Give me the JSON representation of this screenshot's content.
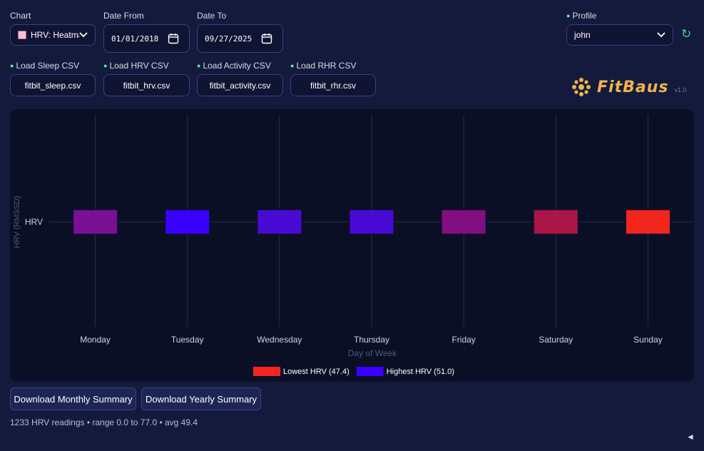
{
  "controls": {
    "chart_label": "Chart",
    "chart_value": "HRV: Heatma",
    "date_from_label": "Date From",
    "date_from_value": "01/01/2018",
    "date_to_label": "Date To",
    "date_to_value": "09/27/2025",
    "profile_label": "Profile",
    "profile_value": "john"
  },
  "loaders": [
    {
      "label": "Load Sleep CSV",
      "file": "fitbit_sleep.csv"
    },
    {
      "label": "Load HRV CSV",
      "file": "fitbit_hrv.csv"
    },
    {
      "label": "Load Activity CSV",
      "file": "fitbit_activity.csv"
    },
    {
      "label": "Load RHR CSV",
      "file": "fitbit_rhr.csv"
    }
  ],
  "brand": {
    "name": "FitBaus",
    "version": "v1.0",
    "color": "#f0b44a"
  },
  "chart_data": {
    "type": "heatmap",
    "x": [
      "Monday",
      "Tuesday",
      "Wednesday",
      "Thursday",
      "Friday",
      "Saturday",
      "Sunday"
    ],
    "y": [
      "HRV"
    ],
    "values": [
      [
        48.9,
        51.0,
        50.5,
        50.5,
        48.7,
        48.0,
        47.4
      ]
    ],
    "colors": [
      "#7b0f95",
      "#3a00ff",
      "#4a0ad6",
      "#4a0ad6",
      "#820f80",
      "#aa1747",
      "#f2261e"
    ],
    "xlabel": "Day of Week",
    "ylabel": "HRV (RMSSD)",
    "legend": [
      {
        "label": "Lowest HRV (47.4)",
        "color": "#f2261e"
      },
      {
        "label": "Highest HRV (51.0)",
        "color": "#3a00ff"
      }
    ],
    "legend_position": "bottom-center",
    "grid": true
  },
  "buttons": {
    "monthly": "Download Monthly Summary",
    "yearly": "Download Yearly Summary"
  },
  "status": "1233 HRV readings • range 0.0 to 77.0 • avg 49.4",
  "collapse_glyph": "◄",
  "refresh_glyph": "↻"
}
